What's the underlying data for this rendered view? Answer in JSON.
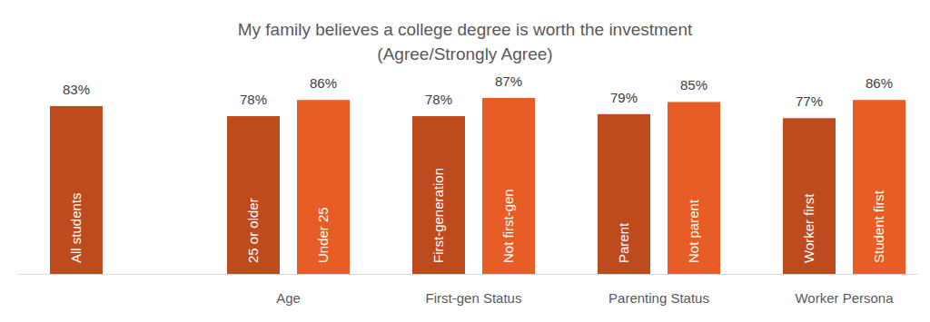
{
  "chart_data": {
    "type": "bar",
    "title": "My family believes a college degree is worth the investment",
    "subtitle": "(Agree/Strongly Agree)",
    "categories": [
      "All students",
      "25 or older",
      "Under 25",
      "First-generation",
      "Not first-gen",
      "Parent",
      "Not parent",
      "Worker first",
      "Student first"
    ],
    "category_groups": [
      null,
      "Age",
      "Age",
      "First-gen Status",
      "First-gen Status",
      "Parenting Status",
      "Parenting Status",
      "Worker Persona",
      "Worker Persona"
    ],
    "values": [
      83,
      78,
      86,
      78,
      87,
      79,
      85,
      77,
      86
    ],
    "value_labels": [
      "83%",
      "78%",
      "86%",
      "78%",
      "87%",
      "79%",
      "85%",
      "77%",
      "86%"
    ],
    "colors": [
      "#be4b1e",
      "#be4b1e",
      "#e85d25",
      "#be4b1e",
      "#e85d25",
      "#be4b1e",
      "#e85d25",
      "#be4b1e",
      "#e85d25"
    ],
    "ylim": [
      0,
      100
    ],
    "data_labels": true,
    "tick_labels": false,
    "grid": false
  }
}
